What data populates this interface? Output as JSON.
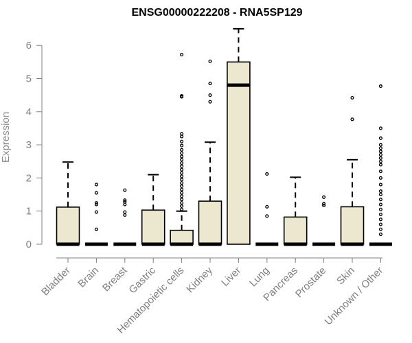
{
  "chart_data": {
    "type": "box",
    "title": "ENSG00000222208 - RNA5SP129",
    "xlabel": "",
    "ylabel": "Expression",
    "ylim": [
      0,
      6.6
    ],
    "yticks": [
      0,
      1,
      2,
      3,
      4,
      5,
      6
    ],
    "colors": {
      "box_fill": "#ece7cf",
      "box_stroke": "#000000",
      "axis": "#7f7f7f"
    },
    "boxes": [
      {
        "label": "Bladder",
        "q1": 0,
        "median": 0,
        "q3": 1.12,
        "whisker_low": 0,
        "whisker_high": 2.48,
        "outliers": []
      },
      {
        "label": "Brain",
        "q1": 0,
        "median": 0,
        "q3": 0,
        "whisker_low": 0,
        "whisker_high": 0,
        "outliers": [
          0.45,
          0.97,
          1.2,
          1.25,
          1.55,
          1.8
        ]
      },
      {
        "label": "Breast",
        "q1": 0,
        "median": 0,
        "q3": 0,
        "whisker_low": 0,
        "whisker_high": 0,
        "outliers": [
          0.88,
          0.97,
          1.2,
          1.28,
          1.33,
          1.63
        ]
      },
      {
        "label": "Gastric",
        "q1": 0,
        "median": 0,
        "q3": 1.03,
        "whisker_low": 0,
        "whisker_high": 2.1,
        "outliers": []
      },
      {
        "label": "Hematopoietic cells",
        "q1": 0,
        "median": 0,
        "q3": 0.42,
        "whisker_low": 0,
        "whisker_high": 1.0,
        "outliers": [
          1.05,
          1.15,
          1.25,
          1.35,
          1.45,
          1.55,
          1.65,
          1.75,
          1.85,
          1.95,
          2.05,
          2.15,
          2.25,
          2.35,
          2.45,
          2.55,
          2.65,
          2.75,
          2.85,
          2.98,
          3.1,
          3.25,
          3.33,
          4.45,
          4.48,
          5.72
        ]
      },
      {
        "label": "Kidney",
        "q1": 0,
        "median": 0,
        "q3": 1.3,
        "whisker_low": 0,
        "whisker_high": 3.08,
        "outliers": [
          4.3,
          4.5,
          4.85,
          5.52
        ]
      },
      {
        "label": "Liver",
        "q1": 0,
        "median": 4.8,
        "q3": 5.5,
        "whisker_low": 0,
        "whisker_high": 6.5,
        "outliers": []
      },
      {
        "label": "Lung",
        "q1": 0,
        "median": 0,
        "q3": 0,
        "whisker_low": 0,
        "whisker_high": 0,
        "outliers": [
          0.85,
          1.13,
          2.12
        ]
      },
      {
        "label": "Pancreas",
        "q1": 0,
        "median": 0,
        "q3": 0.82,
        "whisker_low": 0,
        "whisker_high": 2.02,
        "outliers": []
      },
      {
        "label": "Prostate",
        "q1": 0,
        "median": 0,
        "q3": 0,
        "whisker_low": 0,
        "whisker_high": 0,
        "outliers": [
          1.17,
          1.22,
          1.42
        ]
      },
      {
        "label": "Skin",
        "q1": 0,
        "median": 0,
        "q3": 1.13,
        "whisker_low": 0,
        "whisker_high": 2.55,
        "outliers": [
          3.77,
          4.42
        ]
      },
      {
        "label": "Unknown / Other",
        "q1": 0,
        "median": 0,
        "q3": 0,
        "whisker_low": 0,
        "whisker_high": 0,
        "outliers": [
          0.3,
          0.45,
          0.6,
          0.75,
          0.9,
          1.05,
          1.2,
          1.35,
          1.5,
          1.6,
          1.8,
          2.0,
          2.2,
          2.4,
          2.5,
          2.6,
          2.7,
          2.8,
          2.9,
          3.0,
          3.2,
          3.5,
          4.77
        ]
      }
    ]
  }
}
